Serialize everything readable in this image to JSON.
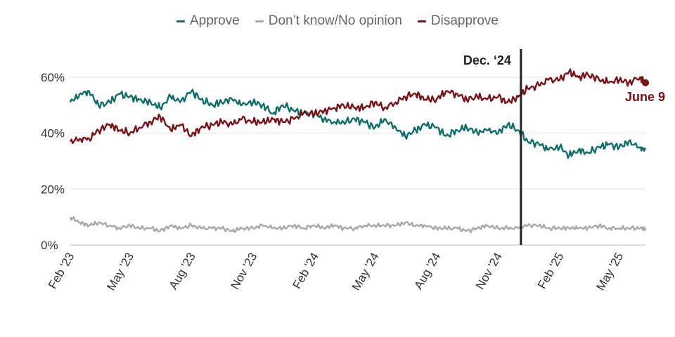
{
  "legend": [
    {
      "label": "Approve",
      "color": "#0e6e6a"
    },
    {
      "label": "Don’t know/No opinion",
      "color": "#a7a9a8"
    },
    {
      "label": "Disapprove",
      "color": "#7a1116"
    }
  ],
  "chart_data": {
    "type": "line",
    "title": "",
    "xlabel": "",
    "ylabel": "",
    "ylim": [
      0,
      70
    ],
    "xlim": [
      "2023-02-01",
      "2025-06-09"
    ],
    "y_ticks": [
      "0%",
      "20%",
      "40%",
      "60%"
    ],
    "y_tick_values": [
      0,
      20,
      40,
      60
    ],
    "x_ticks": [
      {
        "label": "Feb '23",
        "date": "2023-02-01"
      },
      {
        "label": "May '23",
        "date": "2023-05-01"
      },
      {
        "label": "Aug '23",
        "date": "2023-08-01"
      },
      {
        "label": "Nov '23",
        "date": "2023-11-01"
      },
      {
        "label": "Feb '24",
        "date": "2024-02-01"
      },
      {
        "label": "May '24",
        "date": "2024-05-01"
      },
      {
        "label": "Aug '24",
        "date": "2024-08-01"
      },
      {
        "label": "Nov '24",
        "date": "2024-11-01"
      },
      {
        "label": "Feb '25",
        "date": "2025-02-01"
      },
      {
        "label": "May '25",
        "date": "2025-05-01"
      }
    ],
    "grid": true,
    "legend_position": "top-center",
    "annotations": [
      {
        "label": "Dec. ‘24",
        "date": "2024-12-05",
        "kind": "vertical-line"
      },
      {
        "label": "June 9",
        "date": "2025-06-09",
        "series": "Disapprove",
        "value": 58
      }
    ],
    "series": [
      {
        "name": "Approve",
        "color": "#0e6e6a",
        "points": [
          [
            "2023-02-01",
            51
          ],
          [
            "2023-02-15",
            54
          ],
          [
            "2023-03-01",
            55
          ],
          [
            "2023-03-15",
            50
          ],
          [
            "2023-04-01",
            51
          ],
          [
            "2023-04-15",
            54
          ],
          [
            "2023-05-01",
            53
          ],
          [
            "2023-05-15",
            52
          ],
          [
            "2023-06-01",
            51
          ],
          [
            "2023-06-15",
            49
          ],
          [
            "2023-07-01",
            53
          ],
          [
            "2023-07-15",
            51
          ],
          [
            "2023-08-01",
            55
          ],
          [
            "2023-08-15",
            52
          ],
          [
            "2023-09-01",
            50
          ],
          [
            "2023-09-15",
            51
          ],
          [
            "2023-10-01",
            52
          ],
          [
            "2023-10-15",
            50
          ],
          [
            "2023-11-01",
            51
          ],
          [
            "2023-11-15",
            50
          ],
          [
            "2023-12-01",
            47
          ],
          [
            "2023-12-15",
            50
          ],
          [
            "2024-01-01",
            48
          ],
          [
            "2024-01-15",
            47
          ],
          [
            "2024-02-01",
            47
          ],
          [
            "2024-02-15",
            45
          ],
          [
            "2024-03-01",
            44
          ],
          [
            "2024-03-15",
            44
          ],
          [
            "2024-04-01",
            45
          ],
          [
            "2024-04-15",
            44
          ],
          [
            "2024-05-01",
            42
          ],
          [
            "2024-05-15",
            45
          ],
          [
            "2024-06-01",
            42
          ],
          [
            "2024-06-15",
            39
          ],
          [
            "2024-07-01",
            41
          ],
          [
            "2024-07-15",
            43
          ],
          [
            "2024-08-01",
            42
          ],
          [
            "2024-08-15",
            39
          ],
          [
            "2024-09-01",
            41
          ],
          [
            "2024-09-15",
            42
          ],
          [
            "2024-10-01",
            40
          ],
          [
            "2024-10-15",
            41
          ],
          [
            "2024-11-01",
            40
          ],
          [
            "2024-11-15",
            43
          ],
          [
            "2024-12-01",
            41
          ],
          [
            "2024-12-15",
            37
          ],
          [
            "2025-01-01",
            36
          ],
          [
            "2025-01-15",
            34
          ],
          [
            "2025-02-01",
            35
          ],
          [
            "2025-02-15",
            32
          ],
          [
            "2025-03-01",
            34
          ],
          [
            "2025-03-15",
            33
          ],
          [
            "2025-04-01",
            35
          ],
          [
            "2025-04-15",
            36
          ],
          [
            "2025-05-01",
            35
          ],
          [
            "2025-05-15",
            37
          ],
          [
            "2025-06-01",
            35
          ],
          [
            "2025-06-09",
            34
          ]
        ]
      },
      {
        "name": "Don’t know/No opinion",
        "color": "#a7a9a8",
        "points": [
          [
            "2023-02-01",
            10
          ],
          [
            "2023-02-15",
            8
          ],
          [
            "2023-03-01",
            7
          ],
          [
            "2023-03-15",
            8
          ],
          [
            "2023-04-01",
            7
          ],
          [
            "2023-04-15",
            6
          ],
          [
            "2023-05-01",
            7
          ],
          [
            "2023-05-15",
            6
          ],
          [
            "2023-06-01",
            6
          ],
          [
            "2023-06-15",
            5
          ],
          [
            "2023-07-01",
            7
          ],
          [
            "2023-07-15",
            6
          ],
          [
            "2023-08-01",
            7
          ],
          [
            "2023-08-15",
            6
          ],
          [
            "2023-09-01",
            6
          ],
          [
            "2023-09-15",
            6
          ],
          [
            "2023-10-01",
            5
          ],
          [
            "2023-10-15",
            6
          ],
          [
            "2023-11-01",
            6
          ],
          [
            "2023-11-15",
            7
          ],
          [
            "2023-12-01",
            6
          ],
          [
            "2023-12-15",
            6
          ],
          [
            "2024-01-01",
            7
          ],
          [
            "2024-01-15",
            6
          ],
          [
            "2024-02-01",
            7
          ],
          [
            "2024-02-15",
            6
          ],
          [
            "2024-03-01",
            7
          ],
          [
            "2024-03-15",
            6
          ],
          [
            "2024-04-01",
            6
          ],
          [
            "2024-04-15",
            7
          ],
          [
            "2024-05-01",
            7
          ],
          [
            "2024-05-15",
            7
          ],
          [
            "2024-06-01",
            7
          ],
          [
            "2024-06-15",
            8
          ],
          [
            "2024-07-01",
            7
          ],
          [
            "2024-07-15",
            7
          ],
          [
            "2024-08-01",
            6
          ],
          [
            "2024-08-15",
            6
          ],
          [
            "2024-09-01",
            6
          ],
          [
            "2024-09-15",
            5
          ],
          [
            "2024-10-01",
            6
          ],
          [
            "2024-10-15",
            7
          ],
          [
            "2024-11-01",
            6
          ],
          [
            "2024-11-15",
            6
          ],
          [
            "2024-12-01",
            6
          ],
          [
            "2024-12-15",
            7
          ],
          [
            "2025-01-01",
            7
          ],
          [
            "2025-01-15",
            6
          ],
          [
            "2025-02-01",
            6
          ],
          [
            "2025-02-15",
            6
          ],
          [
            "2025-03-01",
            6
          ],
          [
            "2025-03-15",
            6
          ],
          [
            "2025-04-01",
            7
          ],
          [
            "2025-04-15",
            6
          ],
          [
            "2025-05-01",
            6
          ],
          [
            "2025-05-15",
            6
          ],
          [
            "2025-06-01",
            6
          ],
          [
            "2025-06-09",
            6
          ]
        ]
      },
      {
        "name": "Disapprove",
        "color": "#7a1116",
        "points": [
          [
            "2023-02-01",
            37
          ],
          [
            "2023-02-15",
            38
          ],
          [
            "2023-03-01",
            38
          ],
          [
            "2023-03-15",
            41
          ],
          [
            "2023-04-01",
            43
          ],
          [
            "2023-04-15",
            41
          ],
          [
            "2023-05-01",
            40
          ],
          [
            "2023-05-15",
            42
          ],
          [
            "2023-06-01",
            44
          ],
          [
            "2023-06-15",
            46
          ],
          [
            "2023-07-01",
            41
          ],
          [
            "2023-07-15",
            43
          ],
          [
            "2023-08-01",
            39
          ],
          [
            "2023-08-15",
            42
          ],
          [
            "2023-09-01",
            43
          ],
          [
            "2023-09-15",
            44
          ],
          [
            "2023-10-01",
            43
          ],
          [
            "2023-10-15",
            45
          ],
          [
            "2023-11-01",
            44
          ],
          [
            "2023-11-15",
            44
          ],
          [
            "2023-12-01",
            45
          ],
          [
            "2023-12-15",
            44
          ],
          [
            "2024-01-01",
            45
          ],
          [
            "2024-01-15",
            47
          ],
          [
            "2024-02-01",
            47
          ],
          [
            "2024-02-15",
            48
          ],
          [
            "2024-03-01",
            49
          ],
          [
            "2024-03-15",
            50
          ],
          [
            "2024-04-01",
            49
          ],
          [
            "2024-04-15",
            49
          ],
          [
            "2024-05-01",
            51
          ],
          [
            "2024-05-15",
            49
          ],
          [
            "2024-06-01",
            51
          ],
          [
            "2024-06-15",
            53
          ],
          [
            "2024-07-01",
            54
          ],
          [
            "2024-07-15",
            52
          ],
          [
            "2024-08-01",
            52
          ],
          [
            "2024-08-15",
            55
          ],
          [
            "2024-09-01",
            54
          ],
          [
            "2024-09-15",
            52
          ],
          [
            "2024-10-01",
            53
          ],
          [
            "2024-10-15",
            52
          ],
          [
            "2024-11-01",
            53
          ],
          [
            "2024-11-15",
            51
          ],
          [
            "2024-12-01",
            53
          ],
          [
            "2024-12-15",
            56
          ],
          [
            "2025-01-01",
            57
          ],
          [
            "2025-01-15",
            59
          ],
          [
            "2025-02-01",
            59
          ],
          [
            "2025-02-15",
            62
          ],
          [
            "2025-03-01",
            60
          ],
          [
            "2025-03-15",
            61
          ],
          [
            "2025-04-01",
            59
          ],
          [
            "2025-04-15",
            58
          ],
          [
            "2025-05-01",
            59
          ],
          [
            "2025-05-15",
            58
          ],
          [
            "2025-06-01",
            60
          ],
          [
            "2025-06-09",
            58
          ]
        ]
      }
    ]
  }
}
